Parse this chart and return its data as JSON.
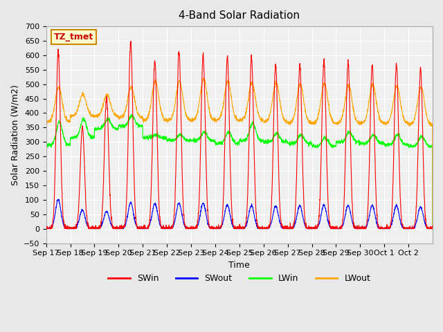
{
  "title": "4-Band Solar Radiation",
  "xlabel": "Time",
  "ylabel": "Solar Radiation (W/m2)",
  "ylim": [
    -50,
    700
  ],
  "background_color": "#e8e8e8",
  "plot_bg_color": "#f0f0f0",
  "grid_color": "#ffffff",
  "legend_items": [
    "SWin",
    "SWout",
    "LWin",
    "LWout"
  ],
  "legend_colors": [
    "#ff0000",
    "#0000ff",
    "#00ff00",
    "#ffa500"
  ],
  "annotation_text": "TZ_tmet",
  "annotation_bg": "#ffffcc",
  "annotation_border": "#cc8800",
  "n_days": 16,
  "day_labels": [
    "Sep 17",
    "Sep 18",
    "Sep 19",
    "Sep 20",
    "Sep 21",
    "Sep 22",
    "Sep 23",
    "Sep 24",
    "Sep 25",
    "Sep 26",
    "Sep 27",
    "Sep 28",
    "Sep 29",
    "Sep 30",
    "Oct 1",
    "Oct 2"
  ],
  "SWin_peaks": [
    615,
    350,
    455,
    648,
    580,
    615,
    600,
    595,
    595,
    568,
    568,
    580,
    575,
    570,
    568,
    555
  ],
  "SWout_peaks": [
    100,
    65,
    60,
    90,
    87,
    88,
    88,
    82,
    80,
    78,
    80,
    82,
    80,
    80,
    80,
    75
  ],
  "LWin_base": [
    290,
    315,
    345,
    355,
    315,
    305,
    305,
    295,
    305,
    300,
    295,
    285,
    300,
    295,
    290,
    285
  ],
  "LWin_day_peak": [
    370,
    380,
    380,
    390,
    325,
    325,
    335,
    335,
    365,
    330,
    325,
    315,
    335,
    325,
    325,
    320
  ],
  "LWout_base": [
    370,
    390,
    390,
    385,
    375,
    375,
    375,
    375,
    375,
    370,
    365,
    365,
    365,
    365,
    365,
    360
  ],
  "LWout_day_peak": [
    490,
    465,
    465,
    490,
    510,
    510,
    518,
    510,
    505,
    505,
    500,
    500,
    495,
    500,
    495,
    490
  ]
}
